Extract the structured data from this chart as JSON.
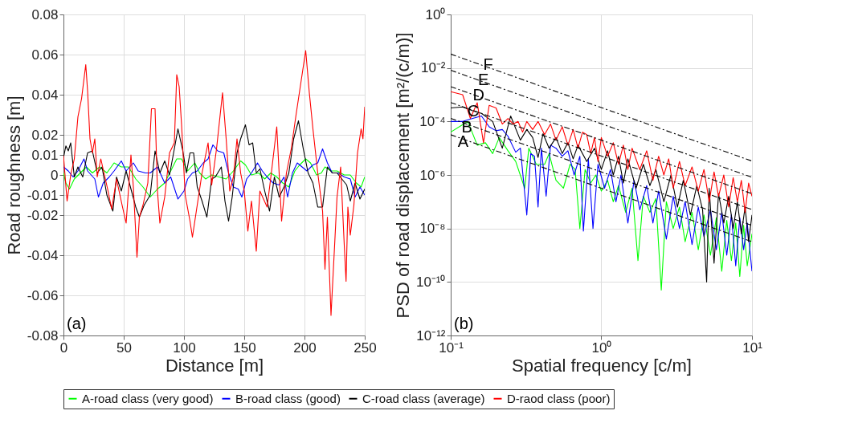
{
  "chart_data": [
    {
      "type": "line",
      "xlabel": "Distance [m]",
      "ylabel": "Road roughness [m]",
      "xlim": [
        0,
        250
      ],
      "xticks": [
        0,
        50,
        100,
        150,
        200,
        250
      ],
      "ylim": [
        -0.08,
        0.08
      ],
      "yticks": [
        -0.08,
        -0.06,
        -0.04,
        -0.02,
        -0.01,
        0,
        0.01,
        0.02,
        0.04,
        0.06,
        0.08
      ],
      "grid": true,
      "legend": "bottom",
      "annotations": [
        "(a)"
      ],
      "series": [
        {
          "name": "A-road class (very good)",
          "color": "#00ff00",
          "x": [
            0,
            2,
            5,
            9,
            14,
            19,
            24,
            30,
            36,
            42,
            48,
            54,
            60,
            66,
            72,
            78,
            84,
            89,
            94,
            98,
            103,
            109,
            113,
            118,
            123,
            129,
            135,
            141,
            147,
            151,
            156,
            162,
            167,
            172,
            177,
            182,
            187,
            192,
            196,
            201,
            205,
            210,
            214,
            217,
            222,
            227,
            233,
            238,
            243,
            247,
            250
          ],
          "values": [
            0.001,
            -0.004,
            -0.007,
            -0.002,
            0.001,
            0.004,
            0.001,
            0.004,
            0.001,
            0.006,
            0.004,
            0.004,
            -0.002,
            -0.006,
            -0.011,
            -0.007,
            -0.004,
            0.002,
            0.008,
            0.008,
            0.002,
            0.006,
            0.001,
            -0.002,
            0,
            -0.001,
            -0.002,
            0.002,
            0.007,
            0.005,
            0,
            0.001,
            -0.002,
            0.001,
            -0.001,
            -0.004,
            -0.006,
            0.002,
            0.005,
            0.008,
            0.006,
            0,
            0.001,
            0.004,
            0.002,
            0.002,
            0,
            0,
            -0.004,
            -0.006,
            -0.001
          ]
        },
        {
          "name": "B-road class (good)",
          "color": "#0000ff",
          "x": [
            0,
            4,
            8,
            12,
            17,
            20,
            26,
            29,
            33,
            38,
            42,
            48,
            52,
            58,
            62,
            68,
            72,
            78,
            84,
            89,
            95,
            100,
            103,
            107,
            111,
            116,
            120,
            124,
            128,
            133,
            137,
            141,
            145,
            148,
            152,
            156,
            161,
            165,
            169,
            174,
            179,
            183,
            186,
            190,
            194,
            198,
            202,
            207,
            211,
            215,
            219,
            223,
            228,
            233,
            238,
            242,
            246,
            250
          ],
          "values": [
            0.004,
            0.002,
            -0.001,
            0.002,
            0.008,
            0.002,
            -0.002,
            -0.011,
            -0.004,
            -0.001,
            0.002,
            0.007,
            0.002,
            0.006,
            0.002,
            0.001,
            0.001,
            0.004,
            -0.004,
            -0.001,
            -0.012,
            -0.008,
            -0.002,
            0.001,
            0.002,
            0.006,
            0.008,
            0.015,
            0.012,
            0.011,
            0.001,
            -0.006,
            -0.007,
            -0.011,
            -0.002,
            0.001,
            0.006,
            0.002,
            -0.001,
            -0.004,
            -0.005,
            -0.001,
            -0.011,
            0.001,
            0.006,
            0.004,
            0.002,
            0.005,
            0.006,
            0.013,
            0.006,
            0.001,
            0.001,
            -0.001,
            -0.002,
            -0.011,
            -0.006,
            -0.01
          ]
        },
        {
          "name": "C-road class (average)",
          "color": "#000000",
          "x": [
            0,
            2,
            4,
            6,
            9,
            12,
            16,
            20,
            24,
            28,
            32,
            36,
            41,
            44,
            48,
            52,
            56,
            60,
            63,
            67,
            72,
            76,
            80,
            84,
            88,
            92,
            95,
            99,
            102,
            105,
            108,
            111,
            115,
            119,
            123,
            126,
            131,
            134,
            137,
            140,
            144,
            147,
            151,
            154,
            157,
            160,
            163,
            167,
            171,
            175,
            179,
            183,
            187,
            191,
            195,
            199,
            203,
            207,
            211,
            215,
            219,
            223,
            227,
            231,
            235,
            238,
            242,
            246,
            250
          ],
          "values": [
            0.0085,
            0.0145,
            0.012,
            0.016,
            -0.001,
            0.004,
            -0.001,
            0.011,
            0.012,
            0.001,
            0.004,
            -0.01,
            -0.018,
            -0.001,
            -0.008,
            0.002,
            -0.007,
            -0.016,
            -0.021,
            -0.015,
            -0.01,
            0.012,
            0.001,
            0.007,
            0,
            0.013,
            0.023,
            0.012,
            0.001,
            0.011,
            0.011,
            -0.006,
            -0.013,
            -0.021,
            -0.002,
            -0.001,
            0.004,
            -0.013,
            -0.023,
            -0.011,
            0.011,
            0.018,
            0.025,
            0.015,
            0.016,
            0.001,
            0.003,
            -0.008,
            -0.018,
            -0.001,
            -0.011,
            -0.006,
            0.001,
            0.018,
            0.027,
            0.013,
            0.001,
            -0.004,
            -0.016,
            -0.016,
            0.004,
            0.001,
            0.001,
            -0.002,
            -0.005,
            -0.013,
            -0.004,
            -0.012,
            -0.007
          ]
        },
        {
          "name": "D-raod class (poor)",
          "color": "#ff0000",
          "x": [
            0,
            3,
            6,
            9,
            12,
            15,
            18.5,
            20,
            22,
            24,
            26,
            28,
            31,
            34,
            37,
            40,
            44,
            49,
            52,
            56,
            58,
            61,
            63,
            66,
            70,
            73,
            76,
            78,
            80,
            84,
            88,
            92,
            94,
            96,
            98,
            101,
            105,
            107,
            111,
            115,
            120,
            123,
            127,
            132,
            135,
            138,
            141,
            144,
            147,
            150,
            153,
            156,
            160,
            163,
            169,
            172.5,
            177,
            181,
            185,
            189,
            193,
            197,
            201,
            204,
            207,
            211,
            215,
            217,
            219,
            222,
            225,
            227,
            230,
            233,
            234.5,
            236,
            238,
            241,
            244,
            247,
            248.5,
            250
          ],
          "values": [
            0.0097,
            -0.013,
            0,
            0.008,
            0.029,
            0.038,
            0.055,
            0.042,
            0.018,
            0.011,
            0.018,
            -0.001,
            0.008,
            0,
            -0.008,
            -0.017,
            -0.002,
            -0.016,
            -0.024,
            0.01,
            -0.006,
            -0.041,
            -0.021,
            -0.015,
            -0.004,
            0.033,
            0.033,
            -0.008,
            -0.024,
            -0.011,
            0.011,
            0.016,
            0.05,
            0.044,
            0.025,
            -0.01,
            -0.023,
            -0.031,
            -0.015,
            0.001,
            0.016,
            -0.005,
            0.013,
            0.041,
            0.018,
            -0.008,
            -0.001,
            0.018,
            0.001,
            -0.008,
            -0.028,
            -0.013,
            -0.038,
            -0.008,
            -0.016,
            0.001,
            0.024,
            -0.023,
            0.001,
            0.013,
            0.03,
            0.046,
            0.062,
            0.041,
            0.023,
            0.001,
            -0.018,
            -0.047,
            -0.021,
            -0.07,
            -0.035,
            -0.011,
            0.004,
            -0.035,
            -0.053,
            -0.016,
            -0.03,
            -0.015,
            0.011,
            0.023,
            0.018,
            0.034
          ]
        }
      ]
    },
    {
      "type": "line",
      "xlabel": "Spatial frequency [c/m]",
      "ylabel": "PSD of road displacement  [m²/(c/m)]",
      "log": "xy",
      "xlim": [
        0.1,
        10
      ],
      "xticks": [
        {
          "value": 0.1,
          "label": "10⁻¹"
        },
        {
          "value": 1,
          "label": "10⁰"
        },
        {
          "value": 10,
          "label": "10¹"
        }
      ],
      "ylim": [
        1e-12,
        1
      ],
      "yticks": [
        {
          "value": 1e-12,
          "label": "10⁻¹²"
        },
        {
          "value": 1e-10,
          "label": "10⁻¹⁰"
        },
        {
          "value": 1e-08,
          "label": "10⁻⁸"
        },
        {
          "value": 1e-06,
          "label": "10⁻⁶"
        },
        {
          "value": 0.0001,
          "label": "10⁻⁴"
        },
        {
          "value": 0.01,
          "label": "10⁻²"
        },
        {
          "value": 1,
          "label": "10⁰"
        }
      ],
      "grid": true,
      "legend": "bottom",
      "annotations": [
        "(b)",
        {
          "text": "F",
          "x": 0.177,
          "y": 0.0126
        },
        {
          "text": "E",
          "x": 0.165,
          "y": 0.0035
        },
        {
          "text": "D",
          "x": 0.153,
          "y": 0.00095
        },
        {
          "text": "C",
          "x": 0.141,
          "y": 0.00024
        },
        {
          "text": "B",
          "x": 0.128,
          "y": 6e-05
        },
        {
          "text": "A",
          "x": 0.121,
          "y": 1.7e-05
        }
      ],
      "series": [
        {
          "name": "A-road class (very good)",
          "color": "#00ff00",
          "x": [
            0.1,
            0.13,
            0.15,
            0.17,
            0.19,
            0.21,
            0.24,
            0.27,
            0.31,
            0.33,
            0.37,
            0.42,
            0.45,
            0.5,
            0.56,
            0.62,
            0.67,
            0.72,
            0.78,
            0.85,
            0.92,
            1.0,
            1.1,
            1.2,
            1.3,
            1.45,
            1.6,
            1.75,
            1.9,
            2.1,
            2.3,
            2.5,
            2.7,
            3.0,
            3.3,
            3.6,
            4.0,
            4.4,
            4.8,
            5.3,
            5.8,
            6.3,
            6.8,
            7.3,
            7.8,
            8.3,
            8.8,
            9.3,
            10
          ],
          "values": [
            4e-05,
            0.0001,
            1.3e-05,
            1.6e-05,
            6.3e-06,
            2.5e-05,
            8e-06,
            3.2e-06,
            3.2e-07,
            1e-05,
            2.5e-06,
            2.5e-06,
            6.3e-06,
            6.3e-07,
            3.2e-07,
            2.5e-06,
            1.6e-06,
            1e-08,
            1.6e-06,
            5e-07,
            1e-06,
            2.5e-07,
            6.3e-07,
            1e-07,
            4e-07,
            4e-08,
            3.2e-07,
            6.3e-10,
            1.6e-07,
            4e-08,
            1.3e-07,
            5e-11,
            1e-07,
            1e-08,
            6.3e-08,
            3.2e-09,
            4e-08,
            1.6e-09,
            3.2e-08,
            1e-09,
            2.5e-08,
            2.5e-10,
            2e-08,
            6.3e-10,
            1.6e-08,
            1.6e-10,
            1.3e-08,
            4e-10,
            6.3e-09
          ]
        },
        {
          "name": "B-road class (good)",
          "color": "#0000ff",
          "x": [
            0.1,
            0.12,
            0.14,
            0.16,
            0.18,
            0.2,
            0.22,
            0.24,
            0.27,
            0.29,
            0.32,
            0.34,
            0.36,
            0.38,
            0.4,
            0.43,
            0.46,
            0.5,
            0.55,
            0.6,
            0.66,
            0.72,
            0.76,
            0.82,
            0.88,
            0.95,
            1.05,
            1.15,
            1.25,
            1.35,
            1.5,
            1.65,
            1.8,
            2.0,
            2.2,
            2.4,
            2.7,
            3.0,
            3.3,
            3.6,
            4.0,
            4.4,
            4.8,
            5.3,
            5.8,
            6.3,
            6.8,
            7.3,
            7.8,
            8.3,
            8.8,
            9.3,
            10
          ],
          "values": [
            0.0001,
            0.0001,
            0.00013,
            0.00016,
            6.3e-05,
            4.5e-05,
            5e-05,
            2.8e-05,
            7.1e-06,
            1e-05,
            3.2e-08,
            6.3e-06,
            5e-06,
            6.3e-08,
            1e-05,
            1.6e-07,
            1.3e-05,
            1e-05,
            5e-06,
            8e-06,
            1e-06,
            5e-06,
            8e-09,
            4e-06,
            1e-08,
            2.5e-06,
            3.2e-07,
            1.6e-06,
            1e-07,
            1e-06,
            1.6e-08,
            6.3e-07,
            5e-08,
            4e-07,
            1.6e-08,
            2.5e-07,
            4e-09,
            1.6e-07,
            1e-08,
            1e-07,
            2.5e-09,
            6.3e-08,
            5e-09,
            5e-08,
            1.6e-09,
            4e-08,
            1e-09,
            3.2e-08,
            4e-10,
            2.5e-08,
            1.6e-09,
            1.6e-08,
            2.5e-10
          ]
        },
        {
          "name": "C-road class (average)",
          "color": "#000000",
          "x": [
            0.1,
            0.12,
            0.14,
            0.16,
            0.19,
            0.22,
            0.25,
            0.29,
            0.32,
            0.35,
            0.38,
            0.41,
            0.45,
            0.5,
            0.55,
            0.6,
            0.65,
            0.7,
            0.8,
            0.9,
            1.0,
            1.1,
            1.2,
            1.3,
            1.4,
            1.5,
            1.7,
            1.9,
            2.1,
            2.3,
            2.6,
            2.9,
            3.2,
            3.5,
            3.9,
            4.3,
            4.7,
            5.0,
            5.2,
            5.6,
            6.0,
            6.5,
            7.0,
            7.5,
            8.0,
            8.5,
            9.0,
            9.5,
            10
          ],
          "values": [
            0.00032,
            0.00035,
            0.00025,
            0.0002,
            0.0001,
            1e-05,
            0.00016,
            2e-05,
            5e-05,
            2.5e-05,
            4.5e-06,
            3.5e-05,
            1e-05,
            2.5e-05,
            6.3e-06,
            1.6e-05,
            4e-06,
            1.3e-05,
            3.2e-06,
            1e-05,
            1.6e-06,
            8e-06,
            1e-06,
            5e-06,
            5e-07,
            4e-06,
            3.2e-07,
            2.5e-06,
            4e-07,
            1.6e-06,
            1e-07,
            1e-06,
            6.3e-08,
            6.3e-07,
            3.2e-08,
            4e-07,
            5e-08,
            1e-10,
            3.2e-07,
            5e-10,
            2e-07,
            1.6e-08,
            1.6e-07,
            1e-08,
            1e-07,
            6.3e-09,
            6.3e-08,
            3.2e-09,
            3.2e-08
          ]
        },
        {
          "name": "D-raod class (poor)",
          "color": "#ff0000",
          "x": [
            0.1,
            0.12,
            0.135,
            0.15,
            0.165,
            0.18,
            0.2,
            0.22,
            0.24,
            0.26,
            0.28,
            0.3,
            0.32,
            0.35,
            0.38,
            0.42,
            0.46,
            0.5,
            0.55,
            0.6,
            0.65,
            0.7,
            0.75,
            0.8,
            0.85,
            0.9,
            0.95,
            1.0,
            1.1,
            1.2,
            1.3,
            1.4,
            1.5,
            1.6,
            1.8,
            2.0,
            2.2,
            2.4,
            2.6,
            2.8,
            3.0,
            3.3,
            3.6,
            4.0,
            4.4,
            4.8,
            5.2,
            5.6,
            6.0,
            6.5,
            7.0,
            7.5,
            8.0,
            8.5,
            9.0,
            9.5,
            10
          ],
          "values": [
            0.0013,
            0.001,
            0.00013,
            0.0005,
            1.6e-05,
            0.0004,
            0.00032,
            8e-05,
            0.00013,
            8e-05,
            0.0001,
            4e-05,
            0.0001,
            5e-05,
            0.0001,
            3.2e-05,
            8e-05,
            2e-05,
            6.3e-05,
            1.3e-05,
            5e-05,
            1e-05,
            4e-05,
            3.2e-05,
            6.3e-06,
            2.5e-05,
            3.2e-06,
            2.5e-05,
            5e-06,
            1.6e-05,
            2.5e-06,
            1.3e-05,
            1.6e-06,
            1e-05,
            1.6e-06,
            8e-06,
            6.3e-07,
            5e-06,
            1e-06,
            4e-06,
            3.2e-07,
            3.2e-06,
            4e-07,
            2e-06,
            2.5e-07,
            1.6e-06,
            1e-07,
            1.3e-06,
            1.6e-07,
            1e-06,
            6.3e-08,
            8e-07,
            1e-07,
            6.3e-07,
            4e-08,
            5e-07,
            1.6e-07
          ]
        },
        {
          "type": "line",
          "color": "#000000",
          "line_style": "dashed",
          "x": [
            0.1,
            10
          ],
          "values": [
            3.2e-05,
            3.2e-09
          ]
        },
        {
          "type": "line",
          "color": "#000000",
          "line_style": "dashed",
          "x": [
            0.1,
            10
          ],
          "values": [
            0.00013,
            1.3e-08
          ]
        },
        {
          "type": "line",
          "color": "#000000",
          "line_style": "dashed",
          "x": [
            0.1,
            10
          ],
          "values": [
            0.00051,
            5.1e-08
          ]
        },
        {
          "type": "line",
          "color": "#000000",
          "line_style": "dashed",
          "x": [
            0.1,
            10
          ],
          "values": [
            0.002,
            2e-07
          ]
        },
        {
          "type": "line",
          "color": "#000000",
          "line_style": "dashed",
          "x": [
            0.1,
            10
          ],
          "values": [
            0.0082,
            8.2e-07
          ]
        },
        {
          "type": "line",
          "color": "#000000",
          "line_style": "dashed",
          "x": [
            0.1,
            10
          ],
          "values": [
            0.033,
            3.3e-06
          ]
        }
      ]
    }
  ]
}
